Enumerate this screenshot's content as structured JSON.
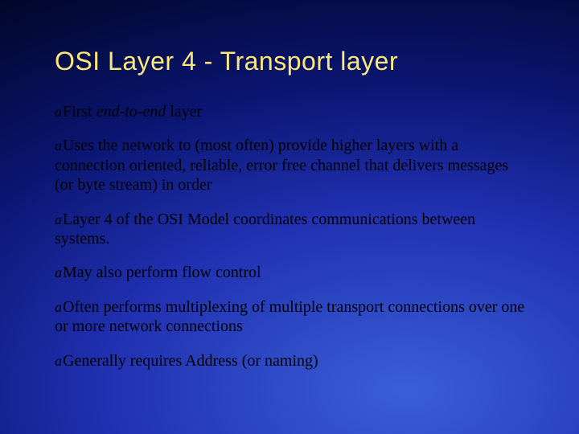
{
  "slide": {
    "title": "OSI Layer 4 - Transport layer",
    "title_color": "#fce87a",
    "title_fontsize": 32,
    "title_fontfamily": "Arial",
    "body_fontsize": 20,
    "body_fontfamily": "Times New Roman",
    "body_color": "#000000",
    "background_gradient": {
      "type": "radial",
      "center": "70% 90%",
      "stops": [
        {
          "color": "#3a5fd9",
          "at": "0%"
        },
        {
          "color": "#2030b0",
          "at": "35%"
        },
        {
          "color": "#0a1570",
          "at": "60%"
        },
        {
          "color": "#020830",
          "at": "85%"
        },
        {
          "color": "#000018",
          "at": "100%"
        }
      ]
    },
    "bullet_glyph": "a",
    "bullets": [
      {
        "pre": "First ",
        "italic": "end-to-end",
        "post": " layer"
      },
      {
        "text": "Uses the network to (most often) provide higher layers with a connection oriented, reliable, error free channel that delivers messages (or byte stream) in order"
      },
      {
        "text": "Layer 4 of the OSI Model coordinates communications between systems."
      },
      {
        "text": "May also perform flow control"
      },
      {
        "text": "Often performs multiplexing of multiple transport connections over one or more network connections"
      },
      {
        "text": "Generally requires Address (or naming)"
      }
    ]
  }
}
